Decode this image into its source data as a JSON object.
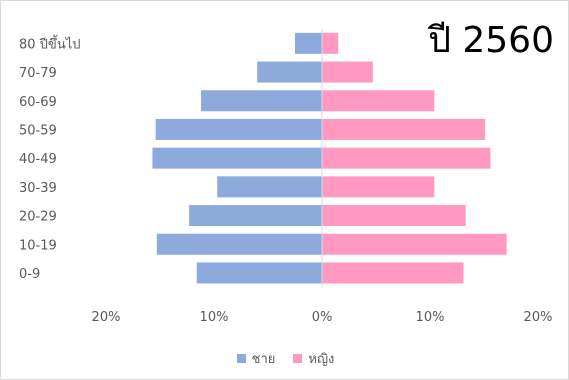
{
  "chart_data": {
    "type": "bar",
    "orientation": "horizontal",
    "title": "ปี 2560",
    "categories": [
      "80 ปีขึ้นไป",
      "70-79",
      "60-69",
      "50-59",
      "40-49",
      "30-39",
      "20-29",
      "10-19",
      "0-9"
    ],
    "series": [
      {
        "name": "ชาย",
        "color": "#8EA9DB",
        "side": "left",
        "values": [
          2.5,
          6.0,
          11.2,
          15.4,
          15.7,
          9.7,
          12.3,
          15.3,
          11.6
        ]
      },
      {
        "name": "หญิง",
        "color": "#FF99C2",
        "side": "right",
        "values": [
          1.5,
          4.7,
          10.4,
          15.1,
          15.6,
          10.4,
          13.3,
          17.1,
          13.1
        ]
      }
    ],
    "x_ticks": [
      "20%",
      "10%",
      "0%",
      "10%",
      "20%"
    ],
    "xlim": [
      -20,
      20
    ],
    "grid": false,
    "legend_position": "bottom"
  }
}
